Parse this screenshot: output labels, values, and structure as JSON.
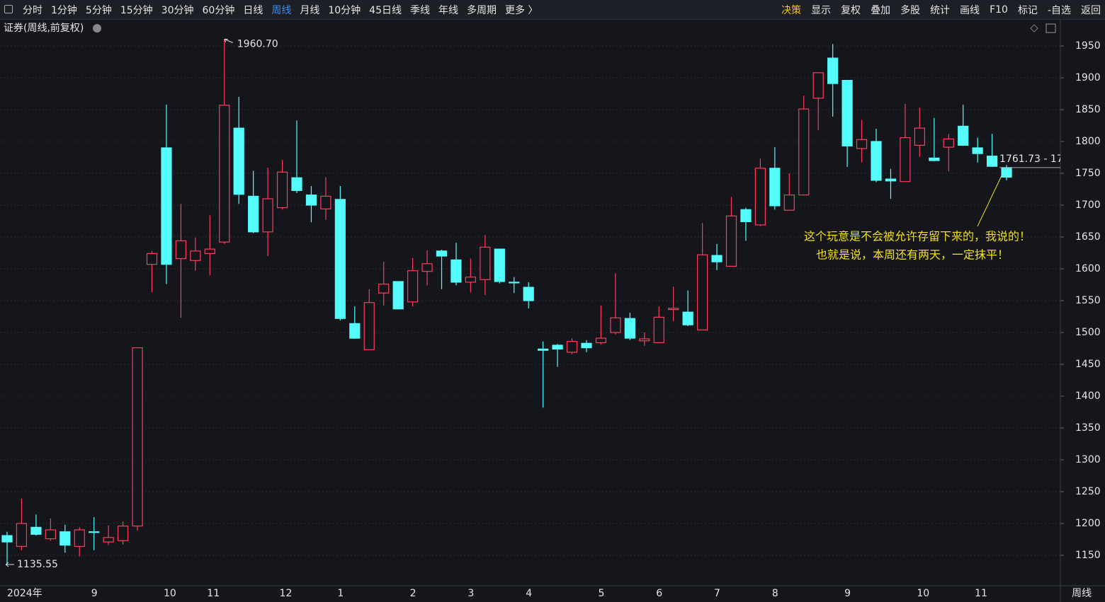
{
  "toolbar": {
    "left": [
      "分时",
      "1分钟",
      "5分钟",
      "15分钟",
      "30分钟",
      "60分钟",
      "日线",
      "周线",
      "月线",
      "10分钟",
      "45日线",
      "季线",
      "年线",
      "多周期",
      "更多 〉"
    ],
    "active": "周线",
    "right": [
      "决策",
      "显示",
      "复权",
      "叠加",
      "多股",
      "统计",
      "画线",
      "F10",
      "标记",
      "-自选",
      "返回"
    ]
  },
  "chart_data": {
    "type": "candlestick",
    "subtitle": "证券(周线,前复权)",
    "period_label": "周线",
    "categories": [
      "2024年",
      null,
      null,
      null,
      null,
      null,
      "9",
      null,
      null,
      null,
      null,
      "10",
      null,
      null,
      "11",
      null,
      null,
      null,
      null,
      "12",
      null,
      null,
      null,
      "1",
      null,
      null,
      null,
      null,
      "2",
      null,
      null,
      null,
      "3",
      null,
      null,
      null,
      "4",
      null,
      null,
      null,
      null,
      "5",
      null,
      null,
      null,
      "6",
      null,
      null,
      null,
      "7",
      null,
      null,
      null,
      "8",
      null,
      null,
      null,
      null,
      "9",
      null,
      null,
      null,
      null,
      "10",
      null,
      null,
      null,
      "11",
      null,
      null
    ],
    "open": [
      1181,
      1164,
      1194,
      1176,
      1187,
      1164,
      1187,
      1171,
      1173,
      1196,
      1607,
      1790,
      1616,
      1613,
      1624,
      1642,
      1821,
      1714,
      1658,
      1696,
      1743,
      1716,
      1694,
      1709,
      1514,
      1473,
      1562,
      1580,
      1548,
      1596,
      1628,
      1614,
      1579,
      1583,
      1631,
      1579,
      1571,
      1474,
      1480,
      1469,
      1483,
      1484,
      1500,
      1522,
      1487,
      1484,
      1536,
      1532,
      1504,
      1621,
      1604,
      1693,
      1669,
      1758,
      1692,
      1716,
      1868,
      1931,
      1896,
      1789,
      1800,
      1741,
      1737,
      1794,
      1774,
      1791,
      1824,
      1790,
      1777,
      1759
    ],
    "close": [
      1171,
      1200,
      1183,
      1190,
      1166,
      1190,
      1186,
      1178,
      1196,
      1476,
      1624,
      1607,
      1644,
      1628,
      1631,
      1857,
      1717,
      1658,
      1710,
      1752,
      1723,
      1700,
      1714,
      1522,
      1491,
      1547,
      1576,
      1537,
      1597,
      1608,
      1620,
      1579,
      1587,
      1634,
      1580,
      1578,
      1550,
      1472,
      1474,
      1486,
      1476,
      1491,
      1523,
      1491,
      1490,
      1524,
      1538,
      1512,
      1622,
      1611,
      1683,
      1674,
      1758,
      1699,
      1716,
      1851,
      1908,
      1891,
      1793,
      1803,
      1739,
      1738,
      1806,
      1821,
      1770,
      1804,
      1794,
      1781,
      1761,
      1744
    ],
    "high": [
      1187,
      1239,
      1214,
      1208,
      1198,
      1194,
      1210,
      1197,
      1203,
      1476,
      1628,
      1858,
      1702,
      1649,
      1684,
      1960.7,
      1870,
      1754,
      1759,
      1771,
      1833,
      1730,
      1744,
      1730,
      1541,
      1568,
      1611,
      1580,
      1617,
      1629,
      1630,
      1641,
      1616,
      1653,
      1631,
      1587,
      1579,
      1486,
      1482,
      1491,
      1488,
      1542,
      1593,
      1531,
      1500,
      1541,
      1572,
      1566,
      1672,
      1639,
      1713,
      1696,
      1773,
      1791,
      1750,
      1872,
      1908,
      1953,
      1896,
      1834,
      1820,
      1757,
      1859,
      1853,
      1837,
      1812,
      1858,
      1806,
      1812,
      1763
    ],
    "low": [
      1135.55,
      1158,
      1181,
      1173,
      1154,
      1148,
      1158,
      1166,
      1167,
      1189,
      1563,
      1576,
      1523,
      1597,
      1590,
      1639,
      1702,
      1656,
      1620,
      1693,
      1719,
      1673,
      1677,
      1519,
      1490,
      1473,
      1542,
      1536,
      1541,
      1574,
      1568,
      1574,
      1563,
      1559,
      1577,
      1562,
      1538,
      1382,
      1446,
      1466,
      1469,
      1481,
      1497,
      1488,
      1479,
      1484,
      1518,
      1510,
      1504,
      1598,
      1604,
      1644,
      1667,
      1693,
      1692,
      1716,
      1818,
      1839,
      1760,
      1767,
      1736,
      1710,
      1737,
      1776,
      1769,
      1753,
      1793,
      1767,
      1760,
      1739
    ],
    "high_label": "1960.70",
    "low_label": "1135.55",
    "price_label": "1761.73 - 17",
    "annotation": [
      "这个玩意是不会被允许存留下来的，我说的！",
      "也就是说，本周还有两天，一定抹平！"
    ],
    "up_color": "#ff3b5c",
    "down_color": "#54fcfc",
    "ylim": [
      1100,
      1990
    ],
    "yticks": [
      1150,
      1200,
      1250,
      1300,
      1350,
      1400,
      1450,
      1500,
      1550,
      1600,
      1650,
      1700,
      1750,
      1800,
      1850,
      1900,
      1950
    ],
    "grid": true
  }
}
